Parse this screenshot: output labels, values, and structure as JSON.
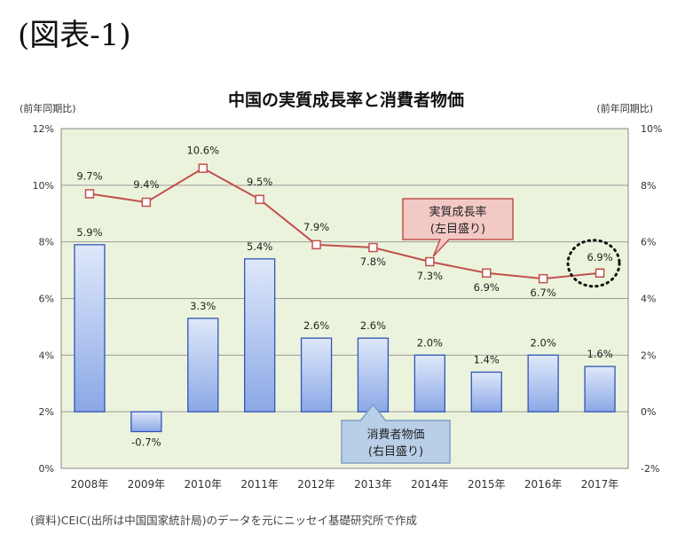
{
  "figure_label": "(図表-1)",
  "source_note": "(資料)CEIC(出所は中国国家統計局)のデータを元にニッセイ基礎研究所で作成",
  "chart_data": {
    "type": "bar+line",
    "title": "中国の実質成長率と消費者物価",
    "left_axis_label": "(前年同期比)",
    "right_axis_label": "(前年同期比)",
    "left_ylim": [
      0,
      12
    ],
    "right_ylim": [
      -2,
      10
    ],
    "left_ticks": [
      "0%",
      "2%",
      "4%",
      "6%",
      "8%",
      "10%",
      "12%"
    ],
    "right_ticks": [
      "-2%",
      "0%",
      "2%",
      "4%",
      "6%",
      "8%",
      "10%"
    ],
    "grid": true,
    "categories": [
      "2008年",
      "2009年",
      "2010年",
      "2011年",
      "2012年",
      "2013年",
      "2014年",
      "2015年",
      "2016年",
      "2017年"
    ],
    "series": [
      {
        "name": "実質成長率(左目盛り)",
        "type": "line",
        "axis": "left",
        "values": [
          9.7,
          9.4,
          10.6,
          9.5,
          7.9,
          7.8,
          7.3,
          6.9,
          6.7,
          6.9
        ],
        "labels": [
          "9.7%",
          "9.4%",
          "10.6%",
          "9.5%",
          "7.9%",
          "7.8%",
          "7.3%",
          "6.9%",
          "6.7%",
          "6.9%"
        ]
      },
      {
        "name": "消費者物価(右目盛り)",
        "type": "bar",
        "axis": "right",
        "values": [
          5.9,
          -0.7,
          3.3,
          5.4,
          2.6,
          2.6,
          2.0,
          1.4,
          2.0,
          1.6
        ],
        "labels": [
          "5.9%",
          "-0.7%",
          "3.3%",
          "5.4%",
          "2.6%",
          "2.6%",
          "2.0%",
          "1.4%",
          "2.0%",
          "1.6%"
        ]
      }
    ],
    "callouts": {
      "line": [
        "実質成長率",
        "(左目盛り)"
      ],
      "bar": [
        "消費者物価",
        "(右目盛り)"
      ]
    },
    "highlight": "2017年 6.9%",
    "colors": {
      "plot_bg": "#ecf3dc",
      "grid": "#9a9a9a",
      "line": "#c0504d",
      "bar_stroke": "#2f55b8",
      "bar_fill_top": "#dfe8fa",
      "bar_fill_bottom": "#8ba8e6",
      "line_callout_bg": "#f3c9c6",
      "line_callout_border": "#c0504d",
      "bar_callout_bg": "#b9cfe8",
      "bar_callout_border": "#7f9fc4"
    }
  }
}
